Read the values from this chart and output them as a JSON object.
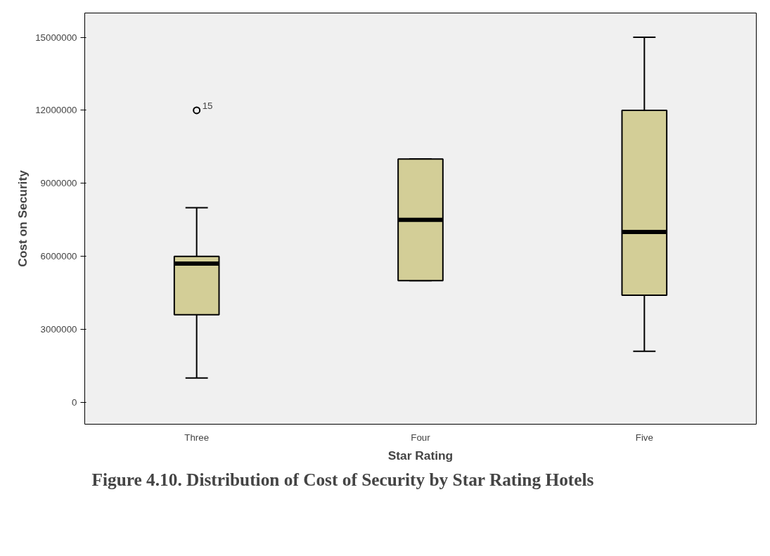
{
  "chart_data": {
    "type": "box",
    "title": "Figure 4.10. Distribution of Cost of Security by Star Rating Hotels",
    "xlabel": "Star Rating",
    "ylabel": "Cost on Security",
    "categories": [
      "Three",
      "Four",
      "Five"
    ],
    "boxes": [
      {
        "low": 1000000,
        "q1": 3600000,
        "median": 5700000,
        "q3": 6000000,
        "high": 8000000,
        "outliers": [
          12000000
        ]
      },
      {
        "low": 5000000,
        "q1": 5000000,
        "median": 7500000,
        "q3": 10000000,
        "high": 10000000
      },
      {
        "low": 2100000,
        "q1": 4400000,
        "median": 7000000,
        "q3": 12000000,
        "high": 15000000
      }
    ],
    "color": "#d3ce97",
    "ylim": [
      -900000,
      16000000
    ],
    "yticks": [
      0,
      3000000,
      6000000,
      9000000,
      12000000,
      15000000
    ],
    "annotations": [
      "15"
    ],
    "grid": false
  }
}
